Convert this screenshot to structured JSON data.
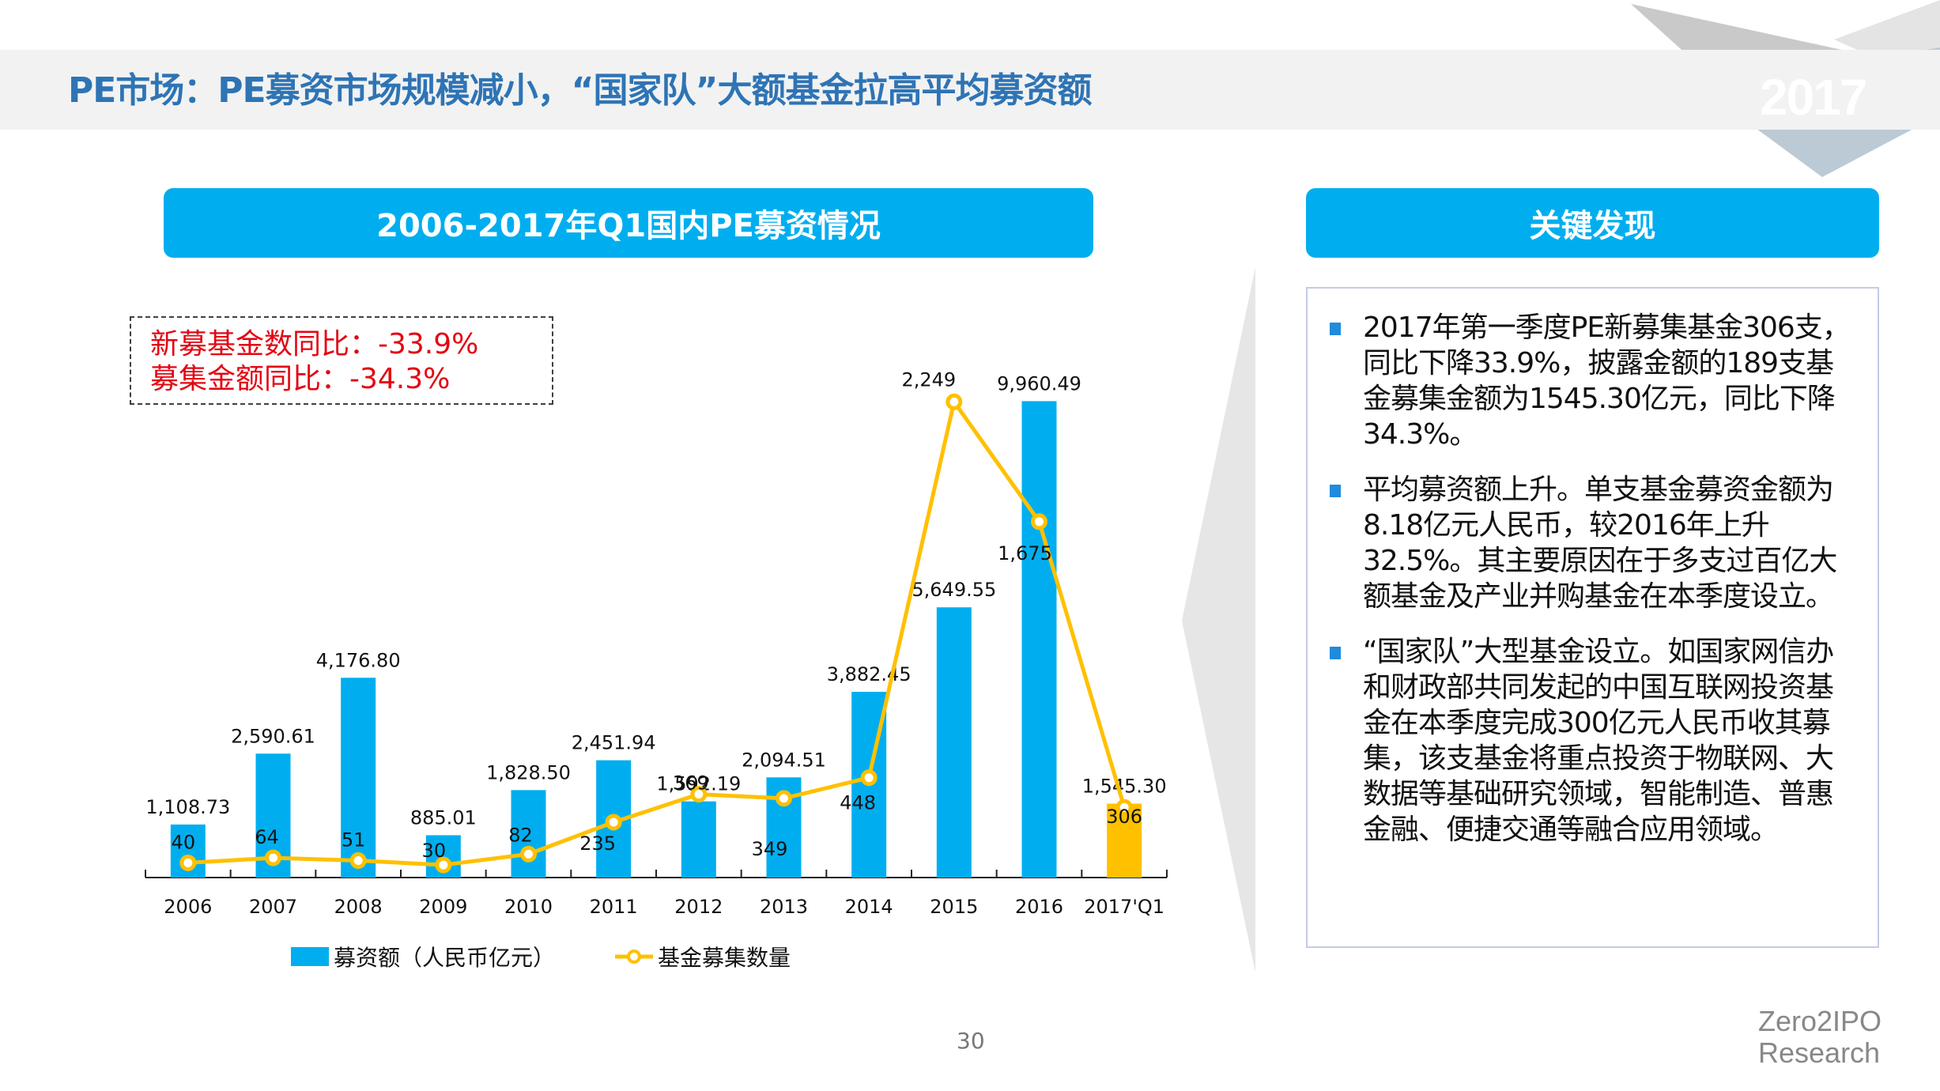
{
  "header": {
    "title": "PE市场：PE募资市场规模减小，“国家队”大额基金拉高平均募资额",
    "year_badge": "2017"
  },
  "chart_panel": {
    "title": "2006-2017年Q1国内PE募资情况",
    "callout": {
      "line1": "新募基金数同比：-33.9%",
      "line2": "募集金额同比：-34.3%"
    }
  },
  "findings_panel": {
    "title": "关键发现",
    "items": [
      {
        "text": "2017年第一季度PE新募集基金306支，同比下降33.9%，披露金额的189支基金募集金额为1545.30亿元，同比下降34.3%。"
      },
      {
        "text": "平均募资额上升。单支基金募资金额为8.18亿元人民币，较2016年上升32.5%。其主要原因在于多支过百亿大额基金及产业并购基金在本季度设立。"
      },
      {
        "text": "“国家队”大型基金设立。如国家网信办和财政部共同发起的中国互联网投资基金在本季度完成300亿元人民币收其募集，该支基金将重点投资于物联网、大数据等基础研究领域，智能制造、普惠金融、便捷交通等融合应用领域。"
      }
    ]
  },
  "footer": {
    "page_number": "30",
    "logo_line1": "Zero2IPO",
    "logo_line2": "Research"
  },
  "colors": {
    "bar": "#00aeef",
    "bar_highlight": "#ffc000",
    "line": "#ffc000",
    "title": "#2e74b5",
    "callout_text": "#e30613",
    "accent": "#00aeef"
  },
  "chart_data": {
    "type": "bar",
    "title": "2006-2017年Q1国内PE募资情况",
    "categories": [
      "2006",
      "2007",
      "2008",
      "2009",
      "2010",
      "2011",
      "2012",
      "2013",
      "2014",
      "2015",
      "2016",
      "2017'Q1"
    ],
    "series": [
      {
        "name": "募资额（人民币亿元）",
        "type": "bar",
        "values": [
          1108.73,
          2590.61,
          4176.8,
          885.01,
          1828.5,
          2451.94,
          1592.19,
          2094.51,
          3882.45,
          5649.55,
          9960.49,
          1545.3
        ],
        "labels": [
          "1,108.73",
          "2,590.61",
          "4,176.80",
          "885.01",
          "1,828.50",
          "2,451.94",
          "1,592.19",
          "2,094.51",
          "3,882.45",
          "5,649.55",
          "9,960.49",
          "1,545.30"
        ],
        "highlight_index": 11
      },
      {
        "name": "基金募集数量",
        "type": "line",
        "values": [
          40,
          64,
          51,
          30,
          82,
          235,
          369,
          349,
          448,
          2249,
          1675,
          306
        ],
        "labels": [
          "40",
          "64",
          "51",
          "30",
          "82",
          "235",
          "369",
          "349",
          "448",
          "2,249",
          "1,675",
          "306"
        ]
      }
    ],
    "legend": [
      "募资额（人民币亿元）",
      "基金募集数量"
    ],
    "legend_position": "bottom",
    "xlabel": "",
    "ylabel": "",
    "ylim_bar": [
      0,
      12000
    ],
    "ylim_line": [
      0,
      2500
    ],
    "grid": false
  }
}
